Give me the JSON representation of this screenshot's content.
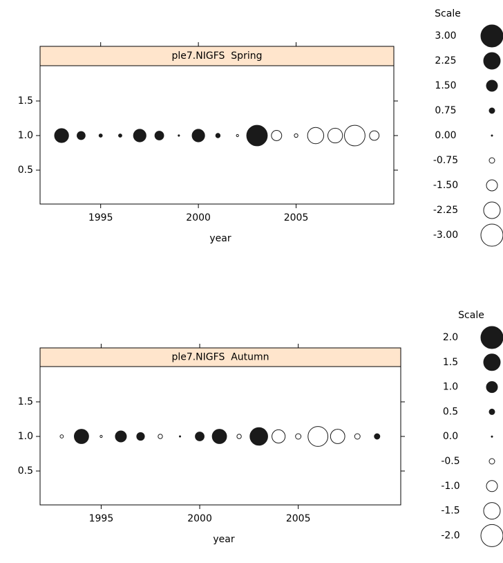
{
  "chart_data": [
    {
      "type": "bubble",
      "title": "ple7.NIGFS  Spring",
      "xlabel": "year",
      "x": [
        1993,
        1994,
        1995,
        1996,
        1997,
        1998,
        1999,
        2000,
        2001,
        2002,
        2003,
        2004,
        2005,
        2006,
        2007,
        2008,
        2009
      ],
      "y": [
        1,
        1,
        1,
        1,
        1,
        1,
        1,
        1,
        1,
        1,
        1,
        1,
        1,
        1,
        1,
        1,
        1
      ],
      "sizes": [
        1.9,
        1.1,
        0.45,
        0.45,
        1.7,
        1.2,
        0.2,
        1.7,
        0.6,
        -0.3,
        2.8,
        -1.4,
        -0.5,
        -2.2,
        -2.0,
        -2.8,
        -1.3
      ],
      "xlim": [
        1991.9,
        2010.0
      ],
      "ylim": [
        0.01,
        2.01
      ],
      "xticks": [
        1995,
        2000,
        2005
      ],
      "yticks": [
        0.5,
        {
          "value": 1,
          "label": "1.0"
        },
        1.5
      ],
      "legend": {
        "title": "Scale",
        "values": [
          {
            "value": 3,
            "label": "3.00"
          },
          {
            "value": 2.25,
            "label": "2.25"
          },
          {
            "value": 1.5,
            "label": "1.50"
          },
          {
            "value": 0.75,
            "label": "0.75"
          },
          {
            "value": 0,
            "label": "0.00"
          },
          {
            "value": -0.75,
            "label": "-0.75"
          },
          {
            "value": -1.5,
            "label": "-1.50"
          },
          {
            "value": -2.25,
            "label": "-2.25"
          },
          {
            "value": -3,
            "label": "-3.00"
          }
        ]
      }
    },
    {
      "type": "bubble",
      "title": "ple7.NIGFS  Autumn",
      "xlabel": "year",
      "x": [
        1993,
        1994,
        1995,
        1996,
        1997,
        1998,
        1999,
        2000,
        2001,
        2002,
        2003,
        2004,
        2005,
        2006,
        2007,
        2008,
        2009
      ],
      "y": [
        1,
        1,
        1,
        1,
        1,
        1,
        1,
        1,
        1,
        1,
        1,
        1,
        1,
        1,
        1,
        1,
        1
      ],
      "sizes": [
        -0.3,
        1.3,
        -0.2,
        1.0,
        0.7,
        -0.4,
        0.1,
        0.8,
        1.3,
        -0.4,
        1.6,
        -1.2,
        -0.5,
        -1.8,
        -1.3,
        -0.5,
        0.5
      ],
      "xlim": [
        1991.9,
        2010.2
      ],
      "ylim": [
        0.01,
        2.01
      ],
      "xticks": [
        1995,
        2000,
        2005
      ],
      "yticks": [
        0.5,
        {
          "value": 1,
          "label": "1.0"
        },
        1.5
      ],
      "legend": {
        "title": "Scale",
        "values": [
          {
            "value": 2,
            "label": "2.0"
          },
          1.5,
          {
            "value": 1,
            "label": "1.0"
          },
          0.5,
          {
            "value": 0,
            "label": "0.0"
          },
          -0.5,
          {
            "value": -1,
            "label": "-1.0"
          },
          -1.5,
          {
            "value": -2,
            "label": "-2.0"
          }
        ]
      }
    }
  ]
}
